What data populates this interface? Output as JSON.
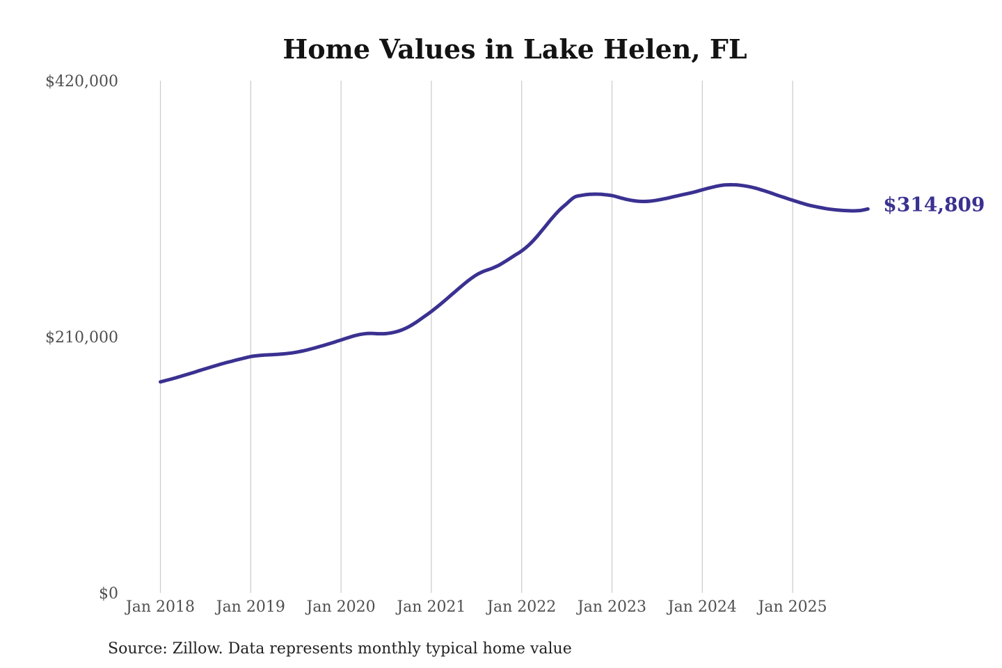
{
  "colors": {
    "background": "#ffffff",
    "line": "#3a3191",
    "annotation": "#3a3191",
    "grid": "#c9c9c9",
    "axis_text": "#4f4f4f",
    "title_text": "#131313",
    "source_text": "#222222"
  },
  "footer": {
    "source_note": "Source: Zillow. Data represents monthly typical home value"
  },
  "chart_data": {
    "type": "line",
    "title": "Home Values in Lake Helen, FL",
    "legend": "none",
    "grid": "vertical-only",
    "ylim": [
      0,
      420000
    ],
    "end_label": "$314,809",
    "end_value": 314809,
    "y_ticks": [
      {
        "label": "$420,000",
        "value": 420000
      },
      {
        "label": "$210,000",
        "value": 210000
      },
      {
        "label": "$0",
        "value": 0
      }
    ],
    "x_ticks": [
      {
        "label": "Jan 2018",
        "month_index": 0
      },
      {
        "label": "Jan 2019",
        "month_index": 12
      },
      {
        "label": "Jan 2020",
        "month_index": 24
      },
      {
        "label": "Jan 2021",
        "month_index": 36
      },
      {
        "label": "Jan 2022",
        "month_index": 48
      },
      {
        "label": "Jan 2023",
        "month_index": 60
      },
      {
        "label": "Jan 2024",
        "month_index": 72
      },
      {
        "label": "Jan 2025",
        "month_index": 84
      }
    ],
    "x": [
      "2018-01",
      "2018-02",
      "2018-03",
      "2018-04",
      "2018-05",
      "2018-06",
      "2018-07",
      "2018-08",
      "2018-09",
      "2018-10",
      "2018-11",
      "2018-12",
      "2019-01",
      "2019-02",
      "2019-03",
      "2019-04",
      "2019-05",
      "2019-06",
      "2019-07",
      "2019-08",
      "2019-09",
      "2019-10",
      "2019-11",
      "2019-12",
      "2020-01",
      "2020-02",
      "2020-03",
      "2020-04",
      "2020-05",
      "2020-06",
      "2020-07",
      "2020-08",
      "2020-09",
      "2020-10",
      "2020-11",
      "2020-12",
      "2021-01",
      "2021-02",
      "2021-03",
      "2021-04",
      "2021-05",
      "2021-06",
      "2021-07",
      "2021-08",
      "2021-09",
      "2021-10",
      "2021-11",
      "2021-12",
      "2022-01",
      "2022-02",
      "2022-03",
      "2022-04",
      "2022-05",
      "2022-06",
      "2022-07",
      "2022-08",
      "2022-09",
      "2022-10",
      "2022-11",
      "2022-12",
      "2023-01",
      "2023-02",
      "2023-03",
      "2023-04",
      "2023-05",
      "2023-06",
      "2023-07",
      "2023-08",
      "2023-09",
      "2023-10",
      "2023-11",
      "2023-12",
      "2024-01",
      "2024-02",
      "2024-03",
      "2024-04",
      "2024-05",
      "2024-06",
      "2024-07",
      "2024-08",
      "2024-09",
      "2024-10",
      "2024-11",
      "2024-12",
      "2025-01",
      "2025-02",
      "2025-03",
      "2025-04",
      "2025-05",
      "2025-06",
      "2025-07",
      "2025-08",
      "2025-09",
      "2025-10",
      "2025-11"
    ],
    "values": [
      173000,
      174600,
      176300,
      178100,
      180000,
      181900,
      183800,
      185700,
      187500,
      189200,
      190800,
      192300,
      193800,
      194600,
      195100,
      195400,
      195800,
      196400,
      197300,
      198500,
      200000,
      201700,
      203500,
      205400,
      207400,
      209400,
      211200,
      212400,
      212800,
      212500,
      212600,
      213600,
      215400,
      218200,
      222000,
      226300,
      230800,
      235600,
      240800,
      246200,
      251500,
      256500,
      260800,
      263800,
      266000,
      268800,
      272500,
      276500,
      280400,
      285500,
      292000,
      299500,
      307000,
      313800,
      319300,
      324500,
      326000,
      326800,
      327000,
      326600,
      325800,
      324200,
      322600,
      321500,
      321000,
      321200,
      322000,
      323200,
      324600,
      326000,
      327400,
      328800,
      330500,
      332200,
      333600,
      334500,
      334700,
      334300,
      333400,
      332000,
      330200,
      328200,
      326000,
      324000,
      322000,
      320000,
      318200,
      316800,
      315600,
      314600,
      313900,
      313500,
      313300,
      313600,
      314809
    ]
  }
}
